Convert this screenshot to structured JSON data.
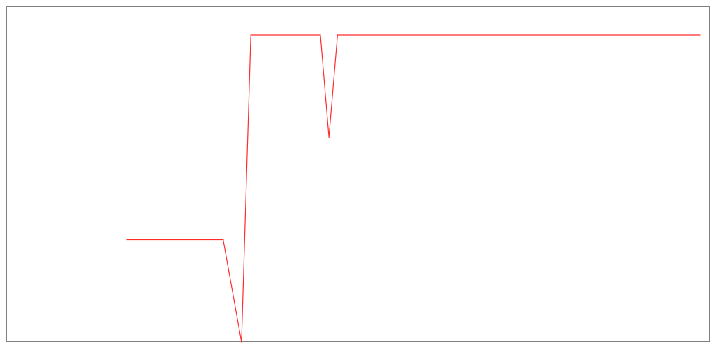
{
  "chart_data": {
    "type": "line",
    "title": "",
    "xlabel": "",
    "ylabel": "",
    "grid": false,
    "legend": false,
    "xlim": [
      0,
      100
    ],
    "ylim": [
      0,
      100
    ],
    "series": [
      {
        "color": "#ff2a2a",
        "points": [
          [
            18.84,
            33.3
          ],
          [
            32.45,
            33.3
          ],
          [
            35.04,
            0
          ],
          [
            36.36,
            100
          ],
          [
            46.21,
            100
          ],
          [
            47.42,
            66.7
          ],
          [
            48.63,
            100
          ],
          [
            100,
            100
          ]
        ]
      }
    ]
  },
  "colors": {
    "frame": "#808080",
    "background": "#ffffff"
  }
}
